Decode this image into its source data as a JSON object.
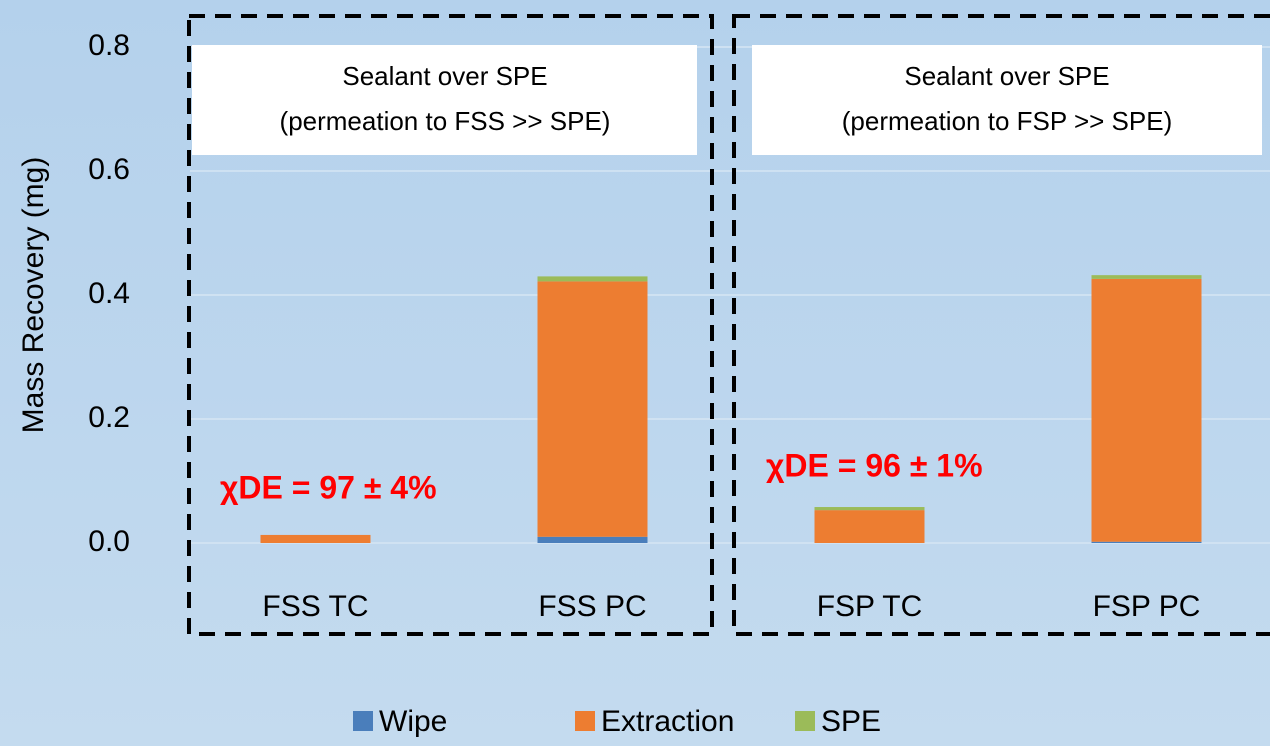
{
  "chart_data": {
    "type": "stacked_bar",
    "ylabel": "Mass Recovery (mg)",
    "categories": [
      "FSS TC",
      "FSS PC",
      "FSP TC",
      "FSP PC"
    ],
    "series": [
      {
        "name": "Wipe",
        "color": "#4a7ebb",
        "values": [
          0,
          0.01,
          0,
          0.002
        ]
      },
      {
        "name": "Extraction",
        "color": "#ed7d31",
        "values": [
          0.013,
          0.412,
          0.053,
          0.424
        ]
      },
      {
        "name": "SPE",
        "color": "#9bbb59",
        "values": [
          0,
          0.008,
          0.005,
          0.006
        ]
      }
    ],
    "ylim": [
      0,
      0.8
    ],
    "yticks": [
      {
        "value": 0,
        "label": "0.0"
      },
      {
        "value": 0.2,
        "label": "0.2"
      },
      {
        "value": 0.4,
        "label": "0.4"
      },
      {
        "value": 0.6,
        "label": "0.6"
      },
      {
        "value": 0.8,
        "label": "0.8"
      }
    ],
    "grid": true,
    "annotations": [
      "Sealant over SPE",
      "(permeation to FSS >> SPE)",
      "Sealant over SPE",
      "(permeation to FSP >> SPE)",
      "χDE = 97 ± 4%",
      "χDE = 96 ± 1%"
    ]
  }
}
